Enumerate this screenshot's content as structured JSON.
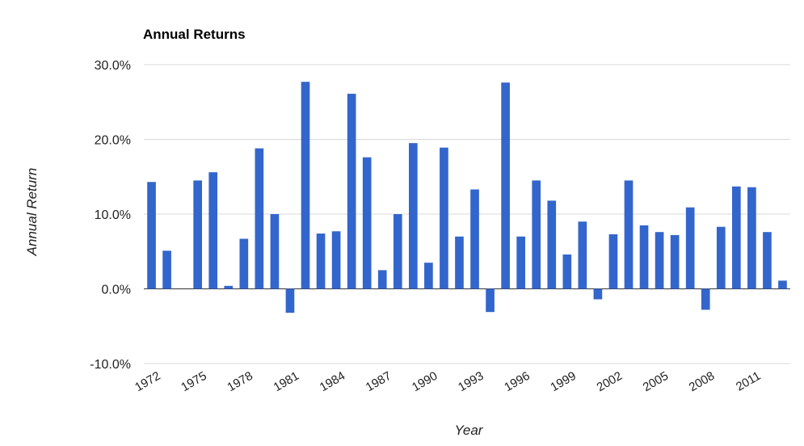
{
  "chart_data": {
    "type": "bar",
    "title": "Annual Returns",
    "xlabel": "Year",
    "ylabel": "Annual Return",
    "ylim": [
      -10,
      30
    ],
    "yticks": [
      30,
      20,
      10,
      0,
      -10
    ],
    "ytick_labels": [
      "30.0%",
      "20.0%",
      "10.0%",
      "0.0%",
      "-10.0%"
    ],
    "grid": true,
    "legend": "none",
    "bar_color": "#3366cc",
    "categories": [
      1972,
      1973,
      1974,
      1975,
      1976,
      1977,
      1978,
      1979,
      1980,
      1981,
      1982,
      1983,
      1984,
      1985,
      1986,
      1987,
      1988,
      1989,
      1990,
      1991,
      1992,
      1993,
      1994,
      1995,
      1996,
      1997,
      1998,
      1999,
      2000,
      2001,
      2002,
      2003,
      2004,
      2005,
      2006,
      2007,
      2008,
      2009,
      2010,
      2011,
      2012,
      2013
    ],
    "x_tick_labels": [
      "1972",
      "1975",
      "1978",
      "1981",
      "1984",
      "1987",
      "1990",
      "1993",
      "1996",
      "1999",
      "2002",
      "2005",
      "2008",
      "2011"
    ],
    "series": [
      {
        "values": [
          14.3,
          5.1,
          0.0,
          14.5,
          15.6,
          0.4,
          6.7,
          18.8,
          10.0,
          -3.2,
          27.7,
          7.4,
          7.7,
          26.1,
          17.6,
          2.5,
          10.0,
          19.5,
          3.5,
          18.9,
          7.0,
          13.3,
          -3.1,
          27.6,
          7.0,
          14.5,
          11.8,
          4.6,
          9.0,
          -1.4,
          7.3,
          14.5,
          8.5,
          7.6,
          7.2,
          10.9,
          -2.8,
          8.3,
          13.7,
          13.6,
          7.6,
          1.1
        ]
      }
    ]
  }
}
